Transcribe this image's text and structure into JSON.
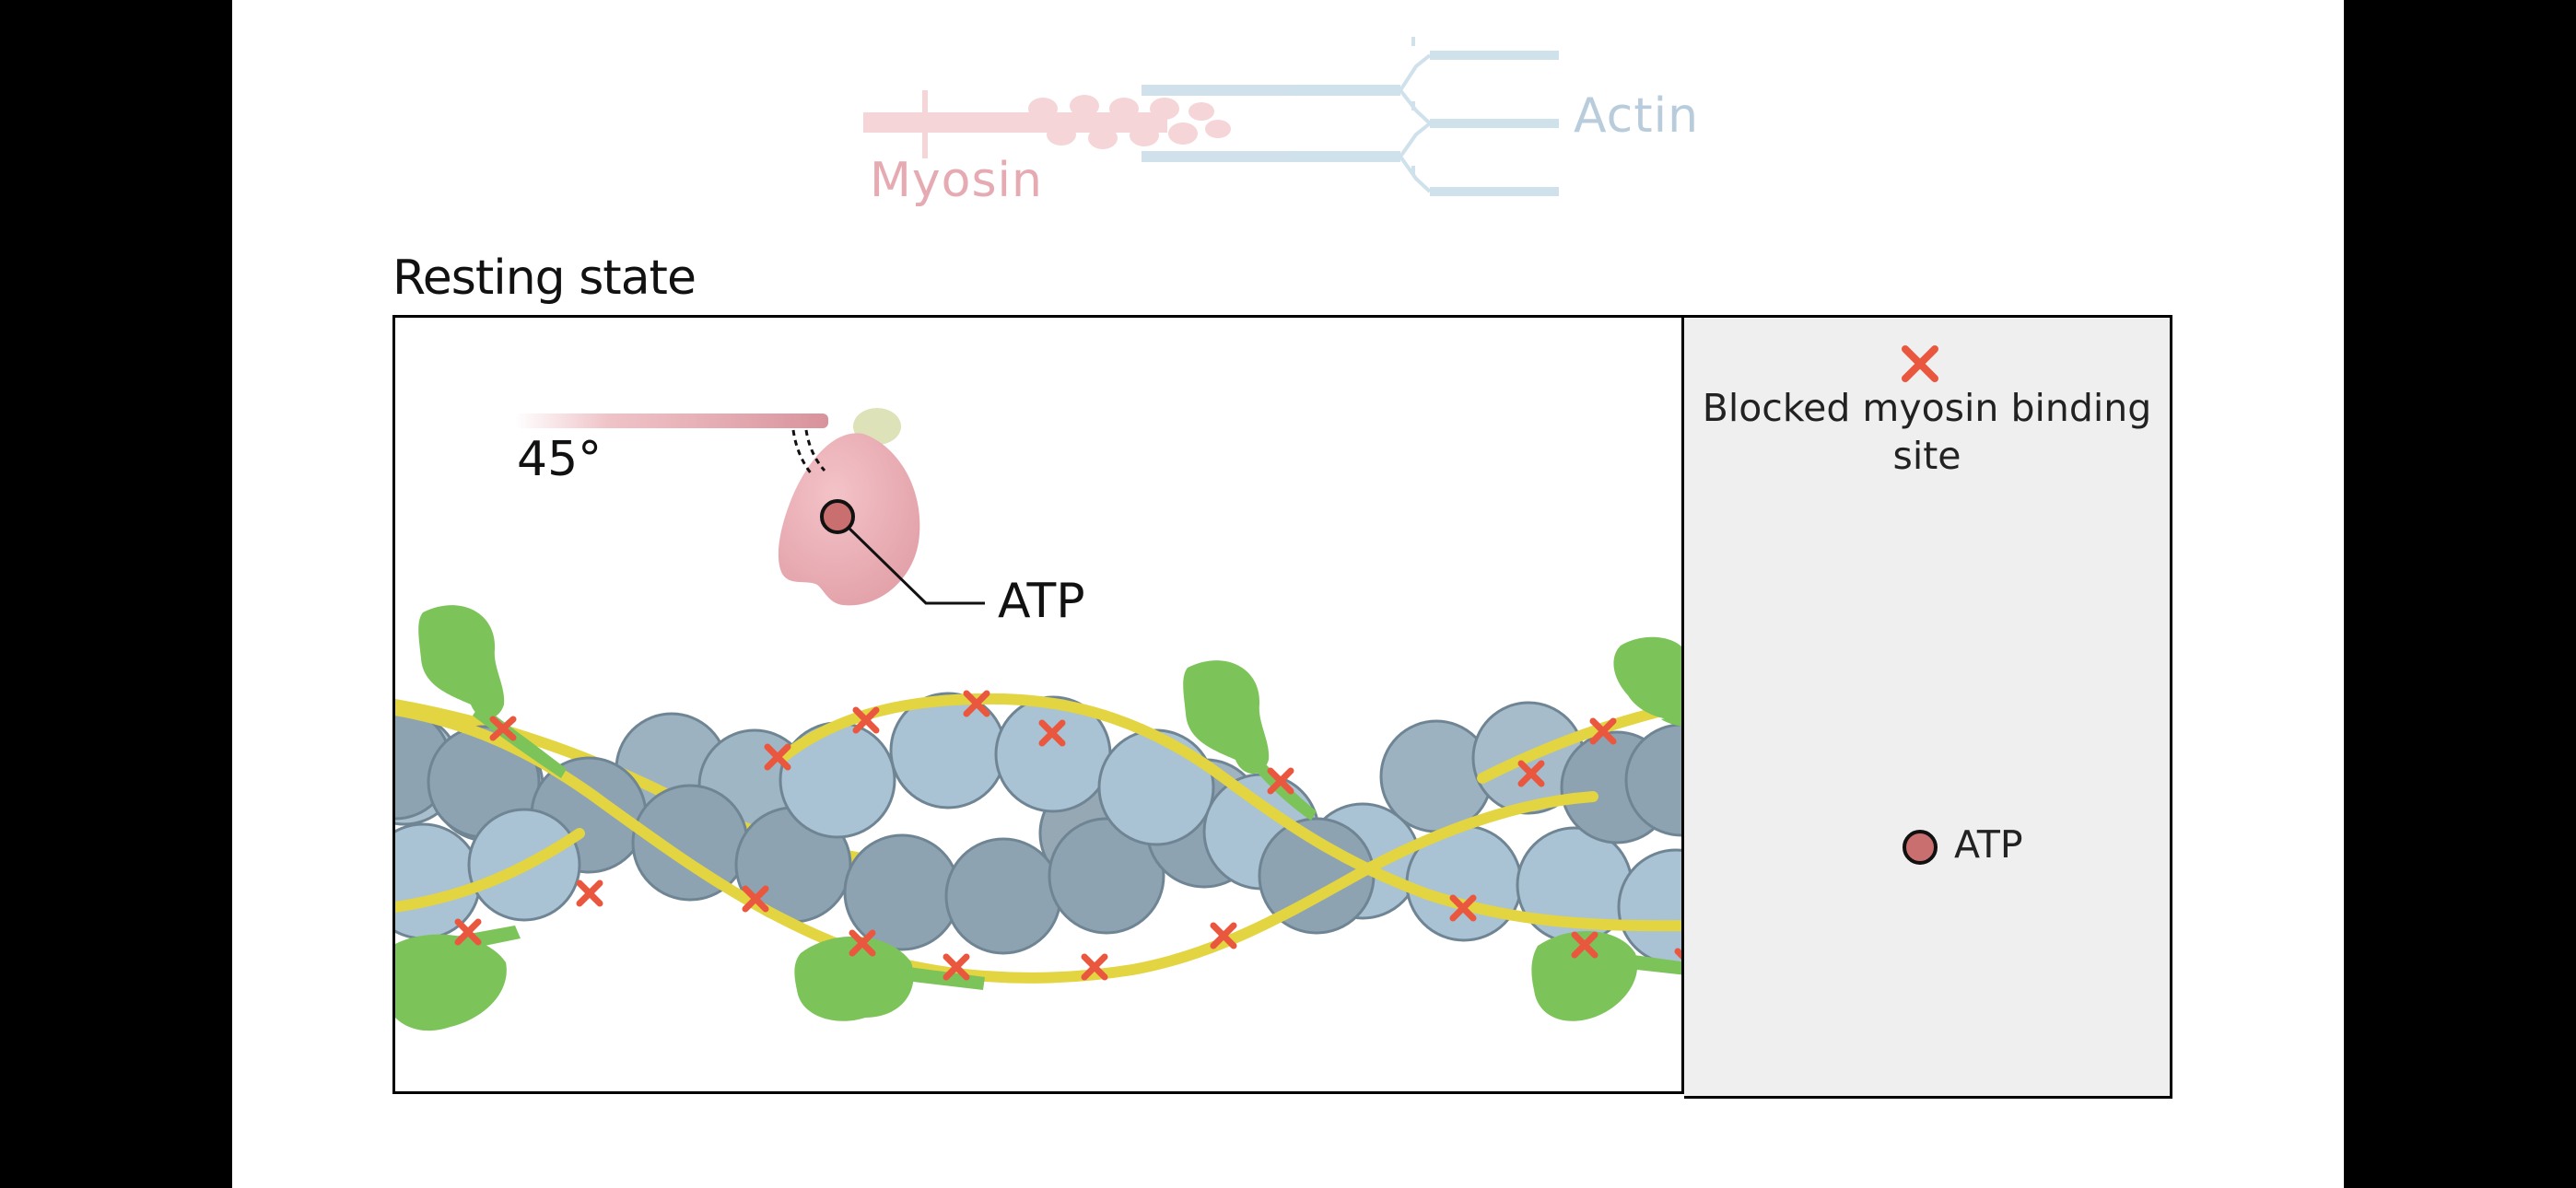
{
  "header": {
    "myosin_label": "Myosin",
    "actin_label": "Actin"
  },
  "panel": {
    "title": "Resting state",
    "angle_label": "45°",
    "atp_label": "ATP"
  },
  "legend": {
    "blocked_label": "Blocked myosin binding site",
    "atp_label": "ATP"
  },
  "colors": {
    "blocked_marker": "#e9573f",
    "atp": "#c96f6f",
    "myosin": "#e8a9b0",
    "actin_light": "#a9c2d4",
    "actin_dark": "#8ea3b2",
    "tropomyosin": "#e3d441",
    "troponin": "#7cc45a"
  }
}
